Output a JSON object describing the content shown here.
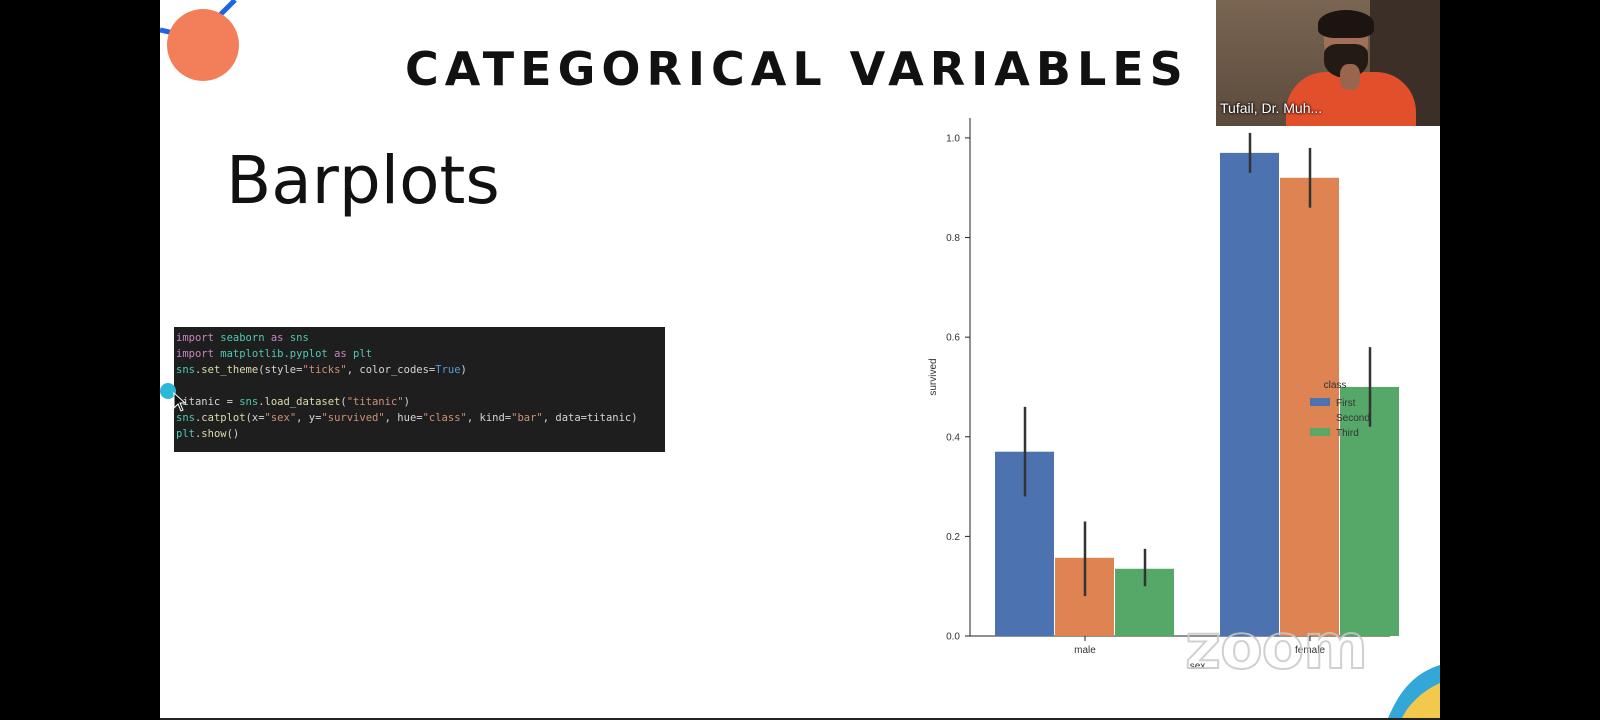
{
  "slide": {
    "title": "CATEGORICAL VARIABLES",
    "subtitle": "Barplots"
  },
  "code": {
    "lines": [
      "import seaborn as sns",
      "import matplotlib.pyplot as plt",
      "sns.set_theme(style=\"ticks\", color_codes=True)",
      "",
      "titanic = sns.load_dataset(\"titanic\")",
      "sns.catplot(x=\"sex\", y=\"survived\", hue=\"class\", kind=\"bar\", data=titanic)",
      "plt.show()"
    ]
  },
  "chart_data": {
    "type": "bar",
    "categories": [
      "male",
      "female"
    ],
    "series": [
      {
        "name": "First",
        "values": [
          0.37,
          0.97
        ],
        "ci": [
          [
            0.28,
            0.46
          ],
          [
            0.93,
            1.01
          ]
        ],
        "color": "#4c72b0"
      },
      {
        "name": "Second",
        "values": [
          0.157,
          0.92
        ],
        "ci": [
          [
            0.08,
            0.23
          ],
          [
            0.86,
            0.98
          ]
        ],
        "color": "#dd8452"
      },
      {
        "name": "Third",
        "values": [
          0.135,
          0.5
        ],
        "ci": [
          [
            0.1,
            0.175
          ],
          [
            0.42,
            0.58
          ]
        ],
        "color": "#55a868"
      }
    ],
    "xlabel": "sex",
    "ylabel": "survived",
    "ylim": [
      0,
      1.04
    ],
    "yticks": [
      0.0,
      0.2,
      0.4,
      0.6,
      0.8,
      1.0
    ],
    "ytick_labels": [
      "0.0",
      "0.2",
      "0.4",
      "0.6",
      "0.8",
      "1.0"
    ],
    "legend_title": "class",
    "legend_position": "right",
    "grid": false
  },
  "video": {
    "participant_name": "Tufail, Dr. Muh..."
  },
  "watermark": {
    "text": "zoom"
  },
  "colors": {
    "accent_orange": "#f27f5a",
    "accent_blue": "#1e64e6",
    "code_bg": "#1e1e1e",
    "cursor_dot": "#2bb8d8"
  }
}
